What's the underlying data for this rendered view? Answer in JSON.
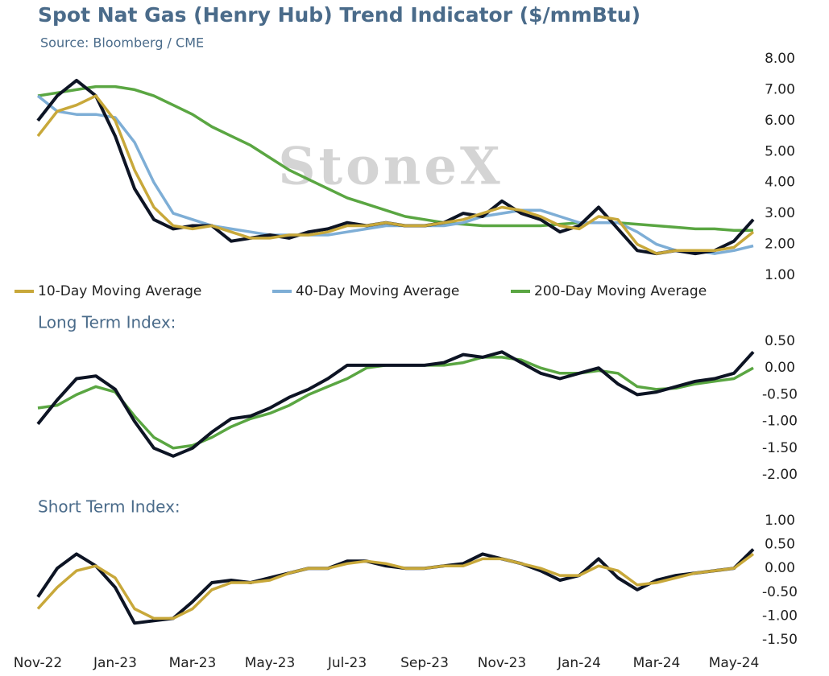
{
  "title": "Spot Nat Gas (Henry Hub) Trend Indicator ($/mmBtu)",
  "subtitle": "Source: Bloomberg / CME",
  "watermark": "StoneX",
  "chart_data": [
    {
      "type": "line",
      "legend": "bottom",
      "ylim": [
        1,
        8
      ],
      "yticks": [
        {
          "value": 1,
          "label": "1.00"
        },
        {
          "value": 2,
          "label": "2.00"
        },
        {
          "value": 3,
          "label": "3.00"
        },
        {
          "value": 4,
          "label": "4.00"
        },
        {
          "value": 5,
          "label": "5.00"
        },
        {
          "value": 6,
          "label": "6.00"
        },
        {
          "value": 7,
          "label": "7.00"
        },
        {
          "value": 8,
          "label": "8.00"
        }
      ],
      "series": [
        {
          "name": "200-Day Moving Average",
          "color": "#5aa642",
          "values": [
            6.8,
            6.9,
            7.0,
            7.1,
            7.1,
            7.0,
            6.8,
            6.5,
            6.2,
            5.8,
            5.5,
            5.2,
            4.8,
            4.4,
            4.1,
            3.8,
            3.5,
            3.3,
            3.1,
            2.9,
            2.8,
            2.7,
            2.65,
            2.6,
            2.6,
            2.6,
            2.6,
            2.65,
            2.7,
            2.7,
            2.7,
            2.65,
            2.6,
            2.55,
            2.5,
            2.5,
            2.45,
            2.45
          ]
        },
        {
          "name": "40-Day Moving Average",
          "color": "#7eaed6",
          "values": [
            6.8,
            6.3,
            6.2,
            6.2,
            6.1,
            5.3,
            4.0,
            3.0,
            2.8,
            2.6,
            2.5,
            2.4,
            2.3,
            2.3,
            2.3,
            2.3,
            2.4,
            2.5,
            2.6,
            2.6,
            2.6,
            2.6,
            2.7,
            2.9,
            3.0,
            3.1,
            3.1,
            2.9,
            2.7,
            2.7,
            2.7,
            2.4,
            2.0,
            1.8,
            1.8,
            1.7,
            1.8,
            1.95
          ]
        },
        {
          "color": "#0d1424",
          "values": [
            6.0,
            6.8,
            7.3,
            6.8,
            5.5,
            3.8,
            2.8,
            2.5,
            2.6,
            2.6,
            2.1,
            2.2,
            2.3,
            2.2,
            2.4,
            2.5,
            2.7,
            2.6,
            2.7,
            2.6,
            2.6,
            2.7,
            3.0,
            2.9,
            3.4,
            3.0,
            2.8,
            2.4,
            2.6,
            3.2,
            2.5,
            1.8,
            1.7,
            1.8,
            1.7,
            1.8,
            2.1,
            2.8
          ]
        },
        {
          "name": "10-Day Moving Average",
          "color": "#c8a83a",
          "values": [
            5.5,
            6.3,
            6.5,
            6.8,
            6.0,
            4.4,
            3.2,
            2.6,
            2.5,
            2.6,
            2.4,
            2.2,
            2.2,
            2.3,
            2.3,
            2.4,
            2.6,
            2.6,
            2.7,
            2.6,
            2.6,
            2.7,
            2.8,
            3.0,
            3.2,
            3.1,
            2.9,
            2.6,
            2.5,
            2.9,
            2.8,
            2.0,
            1.7,
            1.8,
            1.8,
            1.8,
            1.9,
            2.4
          ]
        }
      ]
    },
    {
      "type": "line",
      "title": "Long Term Index:",
      "ylim": [
        -2,
        0.5
      ],
      "yticks": [
        {
          "value": -2,
          "label": "-2.00"
        },
        {
          "value": -1.5,
          "label": "-1.50"
        },
        {
          "value": -1,
          "label": "-1.00"
        },
        {
          "value": -0.5,
          "label": "-0.50"
        },
        {
          "value": 0,
          "label": "0.00"
        },
        {
          "value": 0.5,
          "label": "0.50"
        }
      ],
      "series": [
        {
          "color": "#5aa642",
          "values": [
            -0.75,
            -0.7,
            -0.5,
            -0.35,
            -0.45,
            -0.9,
            -1.3,
            -1.5,
            -1.45,
            -1.3,
            -1.1,
            -0.95,
            -0.85,
            -0.7,
            -0.5,
            -0.35,
            -0.2,
            0.0,
            0.05,
            0.05,
            0.05,
            0.05,
            0.1,
            0.2,
            0.2,
            0.15,
            0.0,
            -0.1,
            -0.1,
            -0.05,
            -0.1,
            -0.35,
            -0.4,
            -0.38,
            -0.3,
            -0.25,
            -0.2,
            0.0
          ]
        },
        {
          "color": "#0d1424",
          "values": [
            -1.05,
            -0.6,
            -0.2,
            -0.15,
            -0.4,
            -1.0,
            -1.5,
            -1.65,
            -1.5,
            -1.2,
            -0.95,
            -0.9,
            -0.75,
            -0.55,
            -0.4,
            -0.2,
            0.05,
            0.05,
            0.05,
            0.05,
            0.05,
            0.1,
            0.25,
            0.2,
            0.3,
            0.1,
            -0.1,
            -0.2,
            -0.1,
            0.0,
            -0.3,
            -0.5,
            -0.45,
            -0.35,
            -0.25,
            -0.2,
            -0.1,
            0.3
          ]
        }
      ]
    },
    {
      "type": "line",
      "title": "Short Term Index:",
      "categories": [
        "Nov-22",
        null,
        null,
        null,
        "Jan-23",
        null,
        null,
        null,
        "Mar-23",
        null,
        null,
        null,
        "May-23",
        null,
        null,
        null,
        "Jul-23",
        null,
        null,
        null,
        "Sep-23",
        null,
        null,
        null,
        "Nov-23",
        null,
        null,
        null,
        "Jan-24",
        null,
        null,
        null,
        "Mar-24",
        null,
        null,
        null,
        "May-24",
        null
      ],
      "ylim": [
        -1.5,
        1
      ],
      "yticks": [
        {
          "value": -1.5,
          "label": "-1.50"
        },
        {
          "value": -1,
          "label": "-1.00"
        },
        {
          "value": -0.5,
          "label": "-0.50"
        },
        {
          "value": 0,
          "label": "0.00"
        },
        {
          "value": 0.5,
          "label": "0.50"
        },
        {
          "value": 1,
          "label": "1.00"
        }
      ],
      "series": [
        {
          "color": "#0d1424",
          "values": [
            -0.6,
            0.0,
            0.3,
            0.05,
            -0.4,
            -1.15,
            -1.1,
            -1.05,
            -0.7,
            -0.3,
            -0.25,
            -0.3,
            -0.2,
            -0.1,
            0.0,
            0.0,
            0.15,
            0.15,
            0.05,
            0.0,
            0.0,
            0.05,
            0.1,
            0.3,
            0.2,
            0.1,
            -0.05,
            -0.25,
            -0.15,
            0.2,
            -0.2,
            -0.45,
            -0.25,
            -0.15,
            -0.1,
            -0.05,
            0.0,
            0.4
          ]
        },
        {
          "color": "#c8a83a",
          "values": [
            -0.85,
            -0.4,
            -0.05,
            0.05,
            -0.2,
            -0.85,
            -1.05,
            -1.05,
            -0.85,
            -0.45,
            -0.3,
            -0.3,
            -0.25,
            -0.1,
            0.0,
            0.0,
            0.1,
            0.15,
            0.1,
            0.0,
            0.0,
            0.05,
            0.05,
            0.2,
            0.2,
            0.1,
            0.0,
            -0.15,
            -0.15,
            0.05,
            -0.05,
            -0.35,
            -0.3,
            -0.2,
            -0.1,
            -0.05,
            0.0,
            0.3
          ]
        }
      ]
    }
  ]
}
